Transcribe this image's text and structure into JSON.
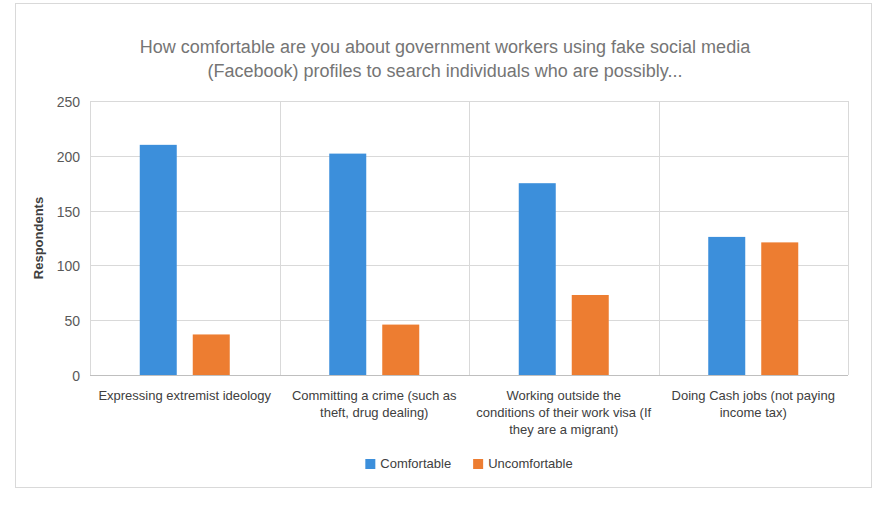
{
  "chart_data": {
    "type": "bar",
    "title": "How comfortable are you about government workers using fake social media (Facebook) profiles to search individuals who are possibly...",
    "y_label": "Respondents",
    "categories": [
      "Expressing extremist ideology",
      "Committing a crime (such as theft, drug dealing)",
      "Working outside the conditions of their work visa (If they are a migrant)",
      "Doing Cash jobs (not paying income tax)"
    ],
    "series": [
      {
        "name": "Comfortable",
        "color": "#3c8fdb",
        "values": [
          210,
          202,
          175,
          126
        ]
      },
      {
        "name": "Uncomfortable",
        "color": "#ed7d31",
        "values": [
          37,
          46,
          73,
          121
        ]
      }
    ],
    "ylim": [
      0,
      250
    ],
    "yticks": [
      0,
      50,
      100,
      150,
      200,
      250
    ],
    "grid": true,
    "legend": "bottom"
  }
}
